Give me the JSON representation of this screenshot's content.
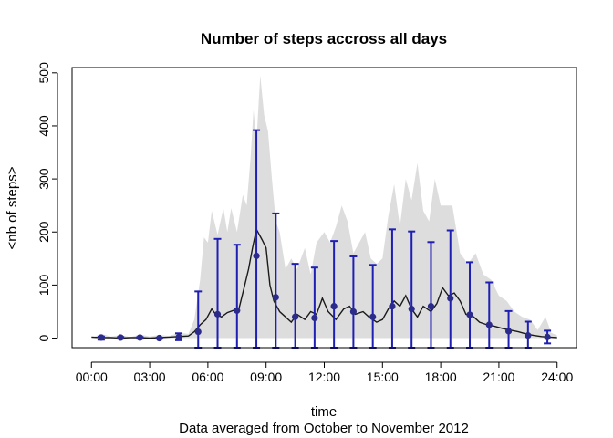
{
  "chart_data": {
    "type": "line",
    "title": "Number of steps accross all days",
    "xlabel": "time",
    "ylabel": "<nb of steps>",
    "subtitle": "Data averaged from October to November 2012",
    "x_range_hours": [
      0,
      24
    ],
    "xlim_hours": [
      -1,
      25
    ],
    "ylim": [
      -18,
      510
    ],
    "x_ticks": [
      "00:00",
      "03:00",
      "06:00",
      "09:00",
      "12:00",
      "15:00",
      "18:00",
      "21:00",
      "24:00"
    ],
    "x_tick_hours": [
      0,
      3,
      6,
      9,
      12,
      15,
      18,
      21,
      24
    ],
    "y_ticks": [
      0,
      100,
      200,
      300,
      400,
      500
    ],
    "grid": false,
    "colors": {
      "mean_line": "#1a1a1a",
      "band": "#dddddd",
      "error_bars": "#1f1fb4",
      "points": "#2b2b8c"
    },
    "band_upper": [
      {
        "x": 0,
        "y": 0
      },
      {
        "x": 0.5,
        "y": 8
      },
      {
        "x": 1,
        "y": 3
      },
      {
        "x": 1.5,
        "y": 6
      },
      {
        "x": 2,
        "y": 2
      },
      {
        "x": 2.5,
        "y": 7
      },
      {
        "x": 3,
        "y": 3
      },
      {
        "x": 3.5,
        "y": 6
      },
      {
        "x": 4,
        "y": 4
      },
      {
        "x": 4.5,
        "y": 10
      },
      {
        "x": 5,
        "y": 8
      },
      {
        "x": 5.3,
        "y": 35
      },
      {
        "x": 5.6,
        "y": 110
      },
      {
        "x": 5.8,
        "y": 190
      },
      {
        "x": 6,
        "y": 180
      },
      {
        "x": 6.2,
        "y": 240
      },
      {
        "x": 6.5,
        "y": 195
      },
      {
        "x": 6.8,
        "y": 245
      },
      {
        "x": 7,
        "y": 200
      },
      {
        "x": 7.2,
        "y": 245
      },
      {
        "x": 7.5,
        "y": 200
      },
      {
        "x": 7.8,
        "y": 270
      },
      {
        "x": 8,
        "y": 250
      },
      {
        "x": 8.2,
        "y": 340
      },
      {
        "x": 8.35,
        "y": 430
      },
      {
        "x": 8.5,
        "y": 370
      },
      {
        "x": 8.7,
        "y": 495
      },
      {
        "x": 8.9,
        "y": 420
      },
      {
        "x": 9.1,
        "y": 390
      },
      {
        "x": 9.3,
        "y": 300
      },
      {
        "x": 9.5,
        "y": 220
      },
      {
        "x": 9.7,
        "y": 200
      },
      {
        "x": 10,
        "y": 130
      },
      {
        "x": 10.3,
        "y": 150
      },
      {
        "x": 10.6,
        "y": 130
      },
      {
        "x": 11,
        "y": 170
      },
      {
        "x": 11.3,
        "y": 120
      },
      {
        "x": 11.6,
        "y": 180
      },
      {
        "x": 12,
        "y": 200
      },
      {
        "x": 12.3,
        "y": 180
      },
      {
        "x": 12.6,
        "y": 210
      },
      {
        "x": 12.9,
        "y": 250
      },
      {
        "x": 13.2,
        "y": 220
      },
      {
        "x": 13.5,
        "y": 160
      },
      {
        "x": 13.8,
        "y": 180
      },
      {
        "x": 14.1,
        "y": 200
      },
      {
        "x": 14.4,
        "y": 150
      },
      {
        "x": 14.7,
        "y": 140
      },
      {
        "x": 15,
        "y": 150
      },
      {
        "x": 15.3,
        "y": 230
      },
      {
        "x": 15.6,
        "y": 290
      },
      {
        "x": 15.9,
        "y": 210
      },
      {
        "x": 16.2,
        "y": 300
      },
      {
        "x": 16.5,
        "y": 260
      },
      {
        "x": 16.8,
        "y": 330
      },
      {
        "x": 17.1,
        "y": 240
      },
      {
        "x": 17.4,
        "y": 220
      },
      {
        "x": 17.7,
        "y": 300
      },
      {
        "x": 18,
        "y": 250
      },
      {
        "x": 18.3,
        "y": 250
      },
      {
        "x": 18.6,
        "y": 250
      },
      {
        "x": 19,
        "y": 160
      },
      {
        "x": 19.4,
        "y": 140
      },
      {
        "x": 19.8,
        "y": 160
      },
      {
        "x": 20.2,
        "y": 120
      },
      {
        "x": 20.6,
        "y": 110
      },
      {
        "x": 21,
        "y": 80
      },
      {
        "x": 21.4,
        "y": 70
      },
      {
        "x": 21.8,
        "y": 50
      },
      {
        "x": 22.2,
        "y": 40
      },
      {
        "x": 22.6,
        "y": 35
      },
      {
        "x": 23,
        "y": 15
      },
      {
        "x": 23.4,
        "y": 40
      },
      {
        "x": 23.7,
        "y": 10
      },
      {
        "x": 24,
        "y": 5
      }
    ],
    "mean_line": [
      {
        "x": 0,
        "y": 2
      },
      {
        "x": 0.5,
        "y": 1
      },
      {
        "x": 1,
        "y": 1
      },
      {
        "x": 1.5,
        "y": 0
      },
      {
        "x": 2,
        "y": 1
      },
      {
        "x": 2.5,
        "y": 1
      },
      {
        "x": 3,
        "y": 0
      },
      {
        "x": 3.5,
        "y": 1
      },
      {
        "x": 4,
        "y": 2
      },
      {
        "x": 4.5,
        "y": 3
      },
      {
        "x": 5,
        "y": 4
      },
      {
        "x": 5.3,
        "y": 12
      },
      {
        "x": 5.6,
        "y": 25
      },
      {
        "x": 5.9,
        "y": 35
      },
      {
        "x": 6.2,
        "y": 55
      },
      {
        "x": 6.4,
        "y": 45
      },
      {
        "x": 6.7,
        "y": 40
      },
      {
        "x": 7,
        "y": 48
      },
      {
        "x": 7.3,
        "y": 52
      },
      {
        "x": 7.6,
        "y": 55
      },
      {
        "x": 7.9,
        "y": 100
      },
      {
        "x": 8.1,
        "y": 130
      },
      {
        "x": 8.3,
        "y": 170
      },
      {
        "x": 8.5,
        "y": 205
      },
      {
        "x": 8.8,
        "y": 185
      },
      {
        "x": 9.0,
        "y": 170
      },
      {
        "x": 9.2,
        "y": 100
      },
      {
        "x": 9.4,
        "y": 70
      },
      {
        "x": 9.7,
        "y": 50
      },
      {
        "x": 10,
        "y": 40
      },
      {
        "x": 10.3,
        "y": 30
      },
      {
        "x": 10.6,
        "y": 45
      },
      {
        "x": 11,
        "y": 35
      },
      {
        "x": 11.3,
        "y": 50
      },
      {
        "x": 11.6,
        "y": 45
      },
      {
        "x": 11.9,
        "y": 75
      },
      {
        "x": 12.2,
        "y": 50
      },
      {
        "x": 12.6,
        "y": 35
      },
      {
        "x": 13,
        "y": 55
      },
      {
        "x": 13.3,
        "y": 60
      },
      {
        "x": 13.6,
        "y": 45
      },
      {
        "x": 14,
        "y": 50
      },
      {
        "x": 14.3,
        "y": 40
      },
      {
        "x": 14.7,
        "y": 30
      },
      {
        "x": 15,
        "y": 35
      },
      {
        "x": 15.3,
        "y": 55
      },
      {
        "x": 15.6,
        "y": 70
      },
      {
        "x": 15.9,
        "y": 60
      },
      {
        "x": 16.2,
        "y": 80
      },
      {
        "x": 16.5,
        "y": 55
      },
      {
        "x": 16.8,
        "y": 40
      },
      {
        "x": 17.1,
        "y": 60
      },
      {
        "x": 17.5,
        "y": 50
      },
      {
        "x": 17.8,
        "y": 65
      },
      {
        "x": 18.1,
        "y": 95
      },
      {
        "x": 18.4,
        "y": 80
      },
      {
        "x": 18.7,
        "y": 85
      },
      {
        "x": 19.0,
        "y": 70
      },
      {
        "x": 19.3,
        "y": 45
      },
      {
        "x": 19.7,
        "y": 40
      },
      {
        "x": 20.0,
        "y": 30
      },
      {
        "x": 20.4,
        "y": 25
      },
      {
        "x": 20.8,
        "y": 22
      },
      {
        "x": 21.2,
        "y": 18
      },
      {
        "x": 21.6,
        "y": 15
      },
      {
        "x": 22,
        "y": 12
      },
      {
        "x": 22.4,
        "y": 8
      },
      {
        "x": 22.8,
        "y": 5
      },
      {
        "x": 23.2,
        "y": 3
      },
      {
        "x": 23.6,
        "y": 2
      },
      {
        "x": 24,
        "y": 1
      }
    ],
    "hourly_points": [
      {
        "x": 0.5,
        "y": 1,
        "upper": 3,
        "lower": -3
      },
      {
        "x": 1.5,
        "y": 1,
        "upper": 2,
        "lower": -1
      },
      {
        "x": 2.5,
        "y": 1,
        "upper": 2,
        "lower": -1
      },
      {
        "x": 3.5,
        "y": 0,
        "upper": 1,
        "lower": -1
      },
      {
        "x": 4.5,
        "y": 2,
        "upper": 9,
        "lower": -4
      },
      {
        "x": 5.5,
        "y": 12,
        "upper": 88,
        "lower": -18
      },
      {
        "x": 6.5,
        "y": 45,
        "upper": 187,
        "lower": -18
      },
      {
        "x": 7.5,
        "y": 52,
        "upper": 176,
        "lower": -18
      },
      {
        "x": 8.5,
        "y": 155,
        "upper": 392,
        "lower": -18
      },
      {
        "x": 9.5,
        "y": 77,
        "upper": 235,
        "lower": -18
      },
      {
        "x": 10.5,
        "y": 40,
        "upper": 140,
        "lower": -18
      },
      {
        "x": 11.5,
        "y": 38,
        "upper": 133,
        "lower": -18
      },
      {
        "x": 12.5,
        "y": 60,
        "upper": 183,
        "lower": -18
      },
      {
        "x": 13.5,
        "y": 50,
        "upper": 154,
        "lower": -18
      },
      {
        "x": 14.5,
        "y": 40,
        "upper": 138,
        "lower": -18
      },
      {
        "x": 15.5,
        "y": 60,
        "upper": 205,
        "lower": -18
      },
      {
        "x": 16.5,
        "y": 55,
        "upper": 201,
        "lower": -18
      },
      {
        "x": 17.5,
        "y": 60,
        "upper": 181,
        "lower": -18
      },
      {
        "x": 18.5,
        "y": 75,
        "upper": 203,
        "lower": -18
      },
      {
        "x": 19.5,
        "y": 44,
        "upper": 143,
        "lower": -18
      },
      {
        "x": 20.5,
        "y": 25,
        "upper": 105,
        "lower": -18
      },
      {
        "x": 21.5,
        "y": 13,
        "upper": 51,
        "lower": -18
      },
      {
        "x": 22.5,
        "y": 5,
        "upper": 31,
        "lower": -18
      },
      {
        "x": 23.5,
        "y": 2,
        "upper": 14,
        "lower": -10
      }
    ]
  }
}
